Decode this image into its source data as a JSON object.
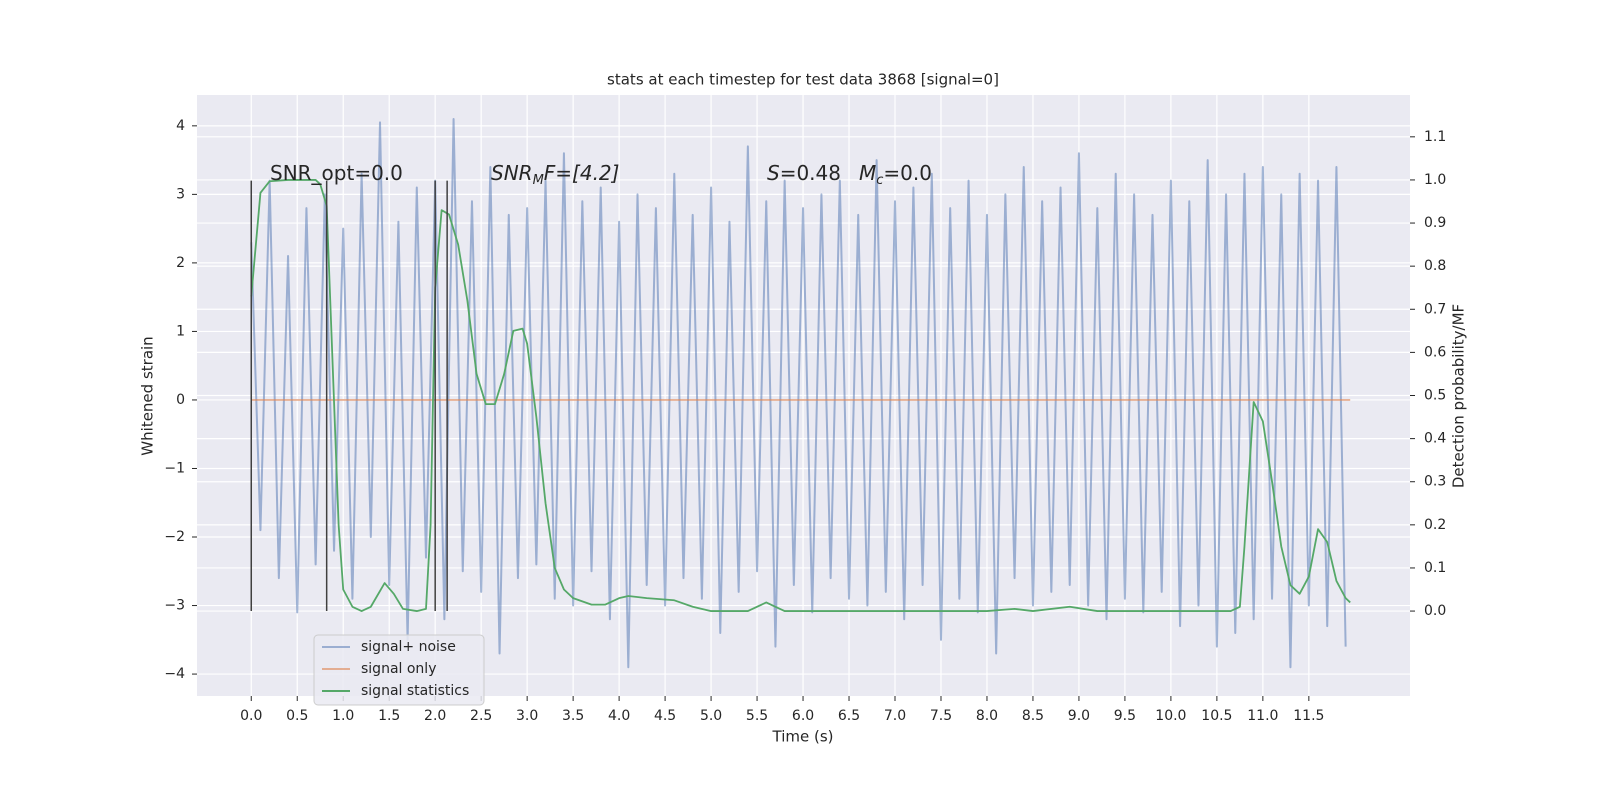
{
  "chart_data": {
    "type": "line",
    "title": "stats at each timestep for test data 3868 [signal=0]",
    "xlabel": "Time (s)",
    "ylabel": "Whitened strain",
    "y2label": "Detection probability/MF",
    "xlim": [
      -0.59,
      12.6
    ],
    "ylim": [
      -4.32,
      4.45
    ],
    "y2lim": [
      -0.197,
      1.197
    ],
    "xticks": [
      {
        "value": 0,
        "label": "0.0"
      },
      0.5,
      {
        "value": 1,
        "label": "1.0"
      },
      1.5,
      {
        "value": 2,
        "label": "2.0"
      },
      2.5,
      {
        "value": 3,
        "label": "3.0"
      },
      3.5,
      {
        "value": 4,
        "label": "4.0"
      },
      4.5,
      {
        "value": 5,
        "label": "5.0"
      },
      5.5,
      {
        "value": 6,
        "label": "6.0"
      },
      6.5,
      {
        "value": 7,
        "label": "7.0"
      },
      7.5,
      {
        "value": 8,
        "label": "8.0"
      },
      8.5,
      {
        "value": 9,
        "label": "9.0"
      },
      9.5,
      {
        "value": 10,
        "label": "10.0"
      },
      10.5,
      {
        "value": 11,
        "label": "11.0"
      },
      11.5
    ],
    "yticks": [
      {
        "value": -4,
        "label": "−4"
      },
      {
        "value": -3,
        "label": "−3"
      },
      {
        "value": -2,
        "label": "−2"
      },
      {
        "value": -1,
        "label": "−1"
      },
      0,
      1,
      2,
      3,
      4
    ],
    "y2ticks": [
      {
        "value": 0,
        "label": "0.0"
      },
      0.1,
      0.2,
      0.3,
      0.4,
      0.5,
      0.6,
      0.7,
      0.8,
      0.9,
      {
        "value": 1,
        "label": "1.0"
      },
      1.1
    ],
    "grid": true,
    "legend": "lower left",
    "annotations": [
      [
        "SNR_opt=0.0"
      ],
      [
        "SNR",
        "M",
        "F=[4.2]"
      ],
      [
        "S",
        "=0.48",
        "M",
        "c",
        "=0.0"
      ]
    ],
    "vlines": {
      "x": [
        0,
        0.82,
        2.0,
        2.13
      ],
      "ymin": -3.08,
      "ymax": 3.2,
      "color": "#404040"
    },
    "series": [
      {
        "name": "signal+ noise",
        "color": "#4c72b0",
        "x": [
          0,
          0.1,
          0.2,
          0.3,
          0.4,
          0.5,
          0.6,
          0.7,
          0.8,
          0.9,
          1,
          1.1,
          1.2,
          1.3,
          1.4,
          1.5,
          1.6,
          1.7,
          1.8,
          1.9,
          2,
          2.1,
          2.2,
          2.3,
          2.4,
          2.5,
          2.6,
          2.7,
          2.8,
          2.9,
          3,
          3.1,
          3.2,
          3.3,
          3.4,
          3.5,
          3.6,
          3.7,
          3.8,
          3.9,
          4,
          4.1,
          4.2,
          4.3,
          4.4,
          4.5,
          4.6,
          4.7,
          4.8,
          4.9,
          5,
          5.1,
          5.2,
          5.3,
          5.4,
          5.5,
          5.6,
          5.7,
          5.8,
          5.9,
          6,
          6.1,
          6.2,
          6.3,
          6.4,
          6.5,
          6.6,
          6.7,
          6.8,
          6.9,
          7,
          7.1,
          7.2,
          7.3,
          7.4,
          7.5,
          7.6,
          7.7,
          7.8,
          7.9,
          8,
          8.1,
          8.2,
          8.3,
          8.4,
          8.5,
          8.6,
          8.7,
          8.8,
          8.9,
          9,
          9.1,
          9.2,
          9.3,
          9.4,
          9.5,
          9.6,
          9.7,
          9.8,
          9.9,
          10,
          10.1,
          10.2,
          10.3,
          10.4,
          10.5,
          10.6,
          10.7,
          10.8,
          10.9,
          11,
          11.1,
          11.2,
          11.3,
          11.4,
          11.5,
          11.6,
          11.7,
          11.8,
          11.9
        ],
        "values": [
          2.3,
          -1.9,
          3.2,
          -2.6,
          2.1,
          -3.1,
          2.8,
          -2.4,
          3.0,
          -2.2,
          2.5,
          -2.9,
          3.3,
          -2.0,
          4.05,
          -2.7,
          2.6,
          -3.5,
          3.1,
          -2.3,
          3.2,
          -3.2,
          4.1,
          -2.5,
          2.9,
          -2.8,
          3.4,
          -3.7,
          2.7,
          -2.6,
          2.8,
          -2.4,
          3.2,
          -2.9,
          3.6,
          -3.0,
          2.9,
          -2.5,
          3.1,
          -3.2,
          2.6,
          -3.9,
          3.0,
          -2.7,
          2.8,
          -3.0,
          3.3,
          -2.6,
          2.7,
          -2.9,
          3.1,
          -3.4,
          2.6,
          -2.8,
          3.7,
          -2.5,
          2.9,
          -3.6,
          3.2,
          -2.7,
          2.8,
          -3.1,
          3.0,
          -2.6,
          3.2,
          -2.9,
          2.7,
          -3.0,
          3.5,
          -2.8,
          2.9,
          -3.2,
          3.1,
          -2.7,
          3.3,
          -3.5,
          2.8,
          -2.9,
          3.2,
          -3.1,
          2.7,
          -3.7,
          3.0,
          -2.6,
          3.4,
          -3.0,
          2.9,
          -2.8,
          3.1,
          -2.7,
          3.6,
          -3.0,
          2.8,
          -3.2,
          3.3,
          -2.9,
          3.0,
          -3.1,
          2.7,
          -2.8,
          3.2,
          -3.3,
          2.9,
          -3.0,
          3.5,
          -3.6,
          3.0,
          -3.4,
          3.3,
          -3.2,
          3.4,
          -2.9,
          3.0,
          -3.9,
          3.3,
          -3.0,
          3.2,
          -3.3,
          3.4,
          -3.6
        ]
      },
      {
        "name": "signal only",
        "color": "#dd8452",
        "x": [
          0,
          11.95
        ],
        "values": [
          0,
          0
        ]
      },
      {
        "name": "signal statistics",
        "color": "#55a868",
        "axis": "y2",
        "x": [
          0,
          0.05,
          0.1,
          0.2,
          0.4,
          0.6,
          0.7,
          0.75,
          0.82,
          0.88,
          0.95,
          1.0,
          1.1,
          1.2,
          1.3,
          1.45,
          1.55,
          1.65,
          1.8,
          1.9,
          1.95,
          2.0,
          2.07,
          2.15,
          2.25,
          2.35,
          2.45,
          2.55,
          2.65,
          2.75,
          2.85,
          2.95,
          3.0,
          3.1,
          3.2,
          3.3,
          3.4,
          3.5,
          3.7,
          3.85,
          4.0,
          4.1,
          4.3,
          4.6,
          4.8,
          5.0,
          5.4,
          5.6,
          5.7,
          5.8,
          6.5,
          7.5,
          8.0,
          8.3,
          8.5,
          8.9,
          9.2,
          9.5,
          10.0,
          10.3,
          10.65,
          10.75,
          10.8,
          10.9,
          11.0,
          11.1,
          11.2,
          11.3,
          11.4,
          11.5,
          11.6,
          11.7,
          11.8,
          11.9,
          11.95
        ],
        "values": [
          0.73,
          0.85,
          0.97,
          0.997,
          1.0,
          1.0,
          1.0,
          0.99,
          0.94,
          0.6,
          0.2,
          0.05,
          0.01,
          0.0,
          0.01,
          0.065,
          0.04,
          0.005,
          0.0,
          0.005,
          0.2,
          0.75,
          0.93,
          0.92,
          0.85,
          0.72,
          0.55,
          0.48,
          0.48,
          0.55,
          0.65,
          0.655,
          0.62,
          0.45,
          0.25,
          0.1,
          0.05,
          0.03,
          0.015,
          0.015,
          0.03,
          0.035,
          0.03,
          0.025,
          0.01,
          0.0,
          0.0,
          0.02,
          0.01,
          0.0,
          0.0,
          0.0,
          0.0,
          0.005,
          0.0,
          0.01,
          0.0,
          0.0,
          0.0,
          0.0,
          0.0,
          0.01,
          0.15,
          0.485,
          0.44,
          0.3,
          0.15,
          0.06,
          0.04,
          0.08,
          0.19,
          0.16,
          0.07,
          0.03,
          0.02
        ]
      }
    ]
  }
}
